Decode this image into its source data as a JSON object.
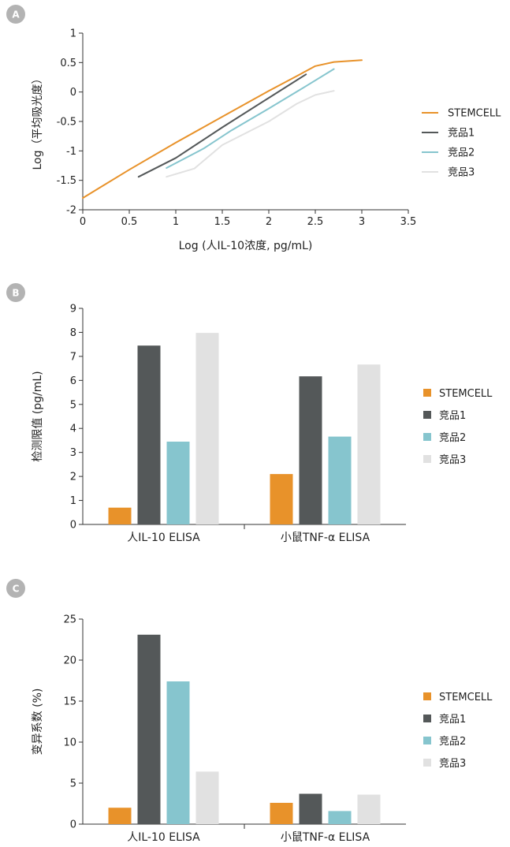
{
  "colors": {
    "STEMCELL": "#e8922a",
    "竞品1": "#545859",
    "竞品2": "#86c5ce",
    "竞品3": "#e1e1e1",
    "badge": "#b3b3b3"
  },
  "chart_data": [
    {
      "panel": "A",
      "type": "line",
      "xlabel": "Log (人IL-10浓度, pg/mL)",
      "ylabel": "Log（平均吸光度）",
      "xlim": [
        0,
        3.5
      ],
      "ylim": [
        -2,
        1
      ],
      "xticks": [
        0,
        0.5,
        1,
        1.5,
        2,
        2.5,
        3,
        3.5
      ],
      "xticklabels": [
        "0",
        "0.5",
        "1",
        "1.5",
        "2",
        "2.5",
        "3",
        "3.5"
      ],
      "yticks": [
        1,
        0.5,
        0,
        -0.5,
        -1,
        -1.5,
        -2
      ],
      "yticklabels": [
        "1",
        "0.5",
        "0",
        "-0.5",
        "-1",
        "-1.5",
        "-2"
      ],
      "legend_position": "right",
      "series": [
        {
          "name": "STEMCELL",
          "x": [
            0,
            0.5,
            1,
            1.5,
            2,
            2.3,
            2.5,
            2.7,
            3.0
          ],
          "y": [
            -1.8,
            -1.32,
            -0.86,
            -0.42,
            0.02,
            0.27,
            0.44,
            0.51,
            0.54
          ]
        },
        {
          "name": "竞品1",
          "x": [
            0.6,
            1.0,
            1.5,
            2.0,
            2.4
          ],
          "y": [
            -1.44,
            -1.12,
            -0.6,
            -0.1,
            0.3
          ]
        },
        {
          "name": "竞品2",
          "x": [
            0.9,
            1.3,
            1.6,
            2.0,
            2.4,
            2.7
          ],
          "y": [
            -1.29,
            -0.96,
            -0.65,
            -0.28,
            0.1,
            0.39
          ]
        },
        {
          "name": "竞品3",
          "x": [
            0.9,
            1.2,
            1.5,
            2.0,
            2.3,
            2.5,
            2.7
          ],
          "y": [
            -1.44,
            -1.3,
            -0.9,
            -0.5,
            -0.2,
            -0.05,
            0.02
          ]
        }
      ]
    },
    {
      "panel": "B",
      "type": "bar",
      "ylabel": "检测限值 (pg/mL)",
      "ylim": [
        0,
        9
      ],
      "yticks": [
        0,
        1,
        2,
        3,
        4,
        5,
        6,
        7,
        8,
        9
      ],
      "yticklabels": [
        "0",
        "1",
        "2",
        "3",
        "4",
        "5",
        "6",
        "7",
        "8",
        "9"
      ],
      "categories": [
        "人IL-10 ELISA",
        "小鼠TNF-α ELISA"
      ],
      "legend_position": "right",
      "series": [
        {
          "name": "STEMCELL",
          "values": [
            0.7,
            2.1
          ]
        },
        {
          "name": "竞品1",
          "values": [
            7.45,
            6.17
          ]
        },
        {
          "name": "竞品2",
          "values": [
            3.45,
            3.66
          ]
        },
        {
          "name": "竞品3",
          "values": [
            7.98,
            6.66
          ]
        }
      ]
    },
    {
      "panel": "C",
      "type": "bar",
      "ylabel": "变异系数 (%)",
      "ylim": [
        0,
        25
      ],
      "yticks": [
        0,
        5,
        10,
        15,
        20,
        25
      ],
      "yticklabels": [
        "0",
        "5",
        "10",
        "15",
        "20",
        "25"
      ],
      "categories": [
        "人IL-10 ELISA",
        "小鼠TNF-α ELISA"
      ],
      "legend_position": "right",
      "series": [
        {
          "name": "STEMCELL",
          "values": [
            2.0,
            2.6
          ]
        },
        {
          "name": "竞品1",
          "values": [
            23.1,
            3.7
          ]
        },
        {
          "name": "竞品2",
          "values": [
            17.4,
            1.6
          ]
        },
        {
          "name": "竞品3",
          "values": [
            6.4,
            3.6
          ]
        }
      ]
    }
  ]
}
